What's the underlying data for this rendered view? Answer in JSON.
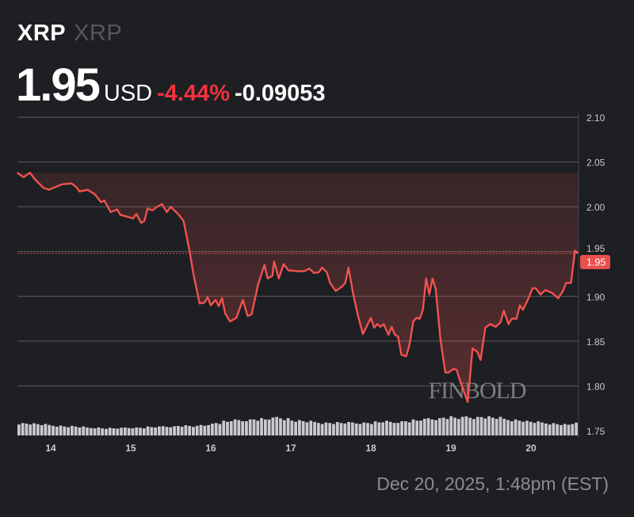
{
  "header": {
    "symbol": "XRP",
    "name": "XRP",
    "price": "1.95",
    "currency": "USD",
    "change_pct": "-4.44%",
    "change_abs": "-0.09053"
  },
  "timestamp": "Dec 20, 2025, 1:48pm (EST)",
  "watermark": "FINBOLD",
  "colors": {
    "background": "#1d1f23",
    "line": "#f0524f",
    "negative": "#f4313e",
    "grid": "#5a5c60",
    "volume": "#d9d9de"
  },
  "chart_data": {
    "type": "line",
    "title": "",
    "xlabel": "",
    "ylabel": "",
    "x_ticks": [
      "14",
      "15",
      "16",
      "17",
      "18",
      "19",
      "20"
    ],
    "y_ticks": [
      "1.75",
      "1.80",
      "1.85",
      "1.90",
      "1.95",
      "2.00",
      "2.05",
      "2.10"
    ],
    "ylim": [
      1.75,
      2.1
    ],
    "xlim": [
      13.58,
      20.6
    ],
    "grid": true,
    "y_axis_position": "right",
    "current_price_label": "1.95",
    "current_price": 1.948,
    "points": [
      [
        13.58,
        2.038
      ],
      [
        13.66,
        2.033
      ],
      [
        13.74,
        2.038
      ],
      [
        13.81,
        2.03
      ],
      [
        13.91,
        2.021
      ],
      [
        13.98,
        2.019
      ],
      [
        14.06,
        2.022
      ],
      [
        14.14,
        2.025
      ],
      [
        14.26,
        2.026
      ],
      [
        14.32,
        2.022
      ],
      [
        14.36,
        2.017
      ],
      [
        14.46,
        2.019
      ],
      [
        14.55,
        2.014
      ],
      [
        14.63,
        2.005
      ],
      [
        14.67,
        2.007
      ],
      [
        14.75,
        1.994
      ],
      [
        14.83,
        1.997
      ],
      [
        14.87,
        1.991
      ],
      [
        14.95,
        1.989
      ],
      [
        15.03,
        1.987
      ],
      [
        15.07,
        1.992
      ],
      [
        15.13,
        1.982
      ],
      [
        15.17,
        1.984
      ],
      [
        15.21,
        1.998
      ],
      [
        15.27,
        1.996
      ],
      [
        15.33,
        2.0
      ],
      [
        15.39,
        2.003
      ],
      [
        15.45,
        1.994
      ],
      [
        15.5,
        2.0
      ],
      [
        15.6,
        1.991
      ],
      [
        15.66,
        1.984
      ],
      [
        15.74,
        1.948
      ],
      [
        15.78,
        1.926
      ],
      [
        15.86,
        1.892
      ],
      [
        15.92,
        1.893
      ],
      [
        15.96,
        1.899
      ],
      [
        16.0,
        1.89
      ],
      [
        16.06,
        1.896
      ],
      [
        16.1,
        1.889
      ],
      [
        16.14,
        1.898
      ],
      [
        16.18,
        1.881
      ],
      [
        16.24,
        1.872
      ],
      [
        16.32,
        1.876
      ],
      [
        16.4,
        1.896
      ],
      [
        16.46,
        1.878
      ],
      [
        16.51,
        1.88
      ],
      [
        16.59,
        1.913
      ],
      [
        16.67,
        1.935
      ],
      [
        16.71,
        1.92
      ],
      [
        16.77,
        1.923
      ],
      [
        16.79,
        1.939
      ],
      [
        16.85,
        1.92
      ],
      [
        16.91,
        1.936
      ],
      [
        16.97,
        1.929
      ],
      [
        17.09,
        1.928
      ],
      [
        17.17,
        1.928
      ],
      [
        17.23,
        1.931
      ],
      [
        17.29,
        1.926
      ],
      [
        17.35,
        1.927
      ],
      [
        17.39,
        1.932
      ],
      [
        17.45,
        1.927
      ],
      [
        17.49,
        1.915
      ],
      [
        17.56,
        1.906
      ],
      [
        17.64,
        1.911
      ],
      [
        17.68,
        1.915
      ],
      [
        17.72,
        1.932
      ],
      [
        17.78,
        1.902
      ],
      [
        17.84,
        1.878
      ],
      [
        17.9,
        1.858
      ],
      [
        18.0,
        1.876
      ],
      [
        18.04,
        1.865
      ],
      [
        18.08,
        1.869
      ],
      [
        18.12,
        1.866
      ],
      [
        18.16,
        1.869
      ],
      [
        18.22,
        1.857
      ],
      [
        18.26,
        1.866
      ],
      [
        18.3,
        1.857
      ],
      [
        18.34,
        1.855
      ],
      [
        18.38,
        1.835
      ],
      [
        18.44,
        1.833
      ],
      [
        18.48,
        1.845
      ],
      [
        18.53,
        1.872
      ],
      [
        18.57,
        1.876
      ],
      [
        18.61,
        1.875
      ],
      [
        18.65,
        1.885
      ],
      [
        18.69,
        1.92
      ],
      [
        18.73,
        1.902
      ],
      [
        18.77,
        1.92
      ],
      [
        18.81,
        1.908
      ],
      [
        18.87,
        1.851
      ],
      [
        18.93,
        1.815
      ],
      [
        18.97,
        1.815
      ],
      [
        19.03,
        1.819
      ],
      [
        19.07,
        1.818
      ],
      [
        19.11,
        1.807
      ],
      [
        19.21,
        1.782
      ],
      [
        19.27,
        1.842
      ],
      [
        19.33,
        1.838
      ],
      [
        19.37,
        1.829
      ],
      [
        19.43,
        1.865
      ],
      [
        19.49,
        1.869
      ],
      [
        19.56,
        1.866
      ],
      [
        19.62,
        1.871
      ],
      [
        19.66,
        1.884
      ],
      [
        19.72,
        1.869
      ],
      [
        19.76,
        1.875
      ],
      [
        19.82,
        1.875
      ],
      [
        19.86,
        1.89
      ],
      [
        19.9,
        1.885
      ],
      [
        19.96,
        1.896
      ],
      [
        20.02,
        1.909
      ],
      [
        20.06,
        1.909
      ],
      [
        20.12,
        1.902
      ],
      [
        20.18,
        1.907
      ],
      [
        20.26,
        1.904
      ],
      [
        20.3,
        1.901
      ],
      [
        20.34,
        1.898
      ],
      [
        20.4,
        1.906
      ],
      [
        20.44,
        1.915
      ],
      [
        20.5,
        1.915
      ],
      [
        20.55,
        1.951
      ],
      [
        20.59,
        1.948
      ]
    ],
    "volume_relative": [
      20,
      20,
      19,
      18,
      17,
      16,
      15,
      15,
      14,
      13,
      13,
      12,
      12,
      12,
      13,
      13,
      13,
      14,
      14,
      15,
      15,
      16,
      16,
      15,
      17,
      19,
      21,
      23,
      25,
      25,
      26,
      27,
      27,
      28,
      30,
      28,
      25,
      24,
      23,
      22,
      21,
      21,
      21,
      21,
      21,
      21,
      21,
      22,
      23,
      22,
      23,
      24,
      25,
      26,
      28,
      28,
      30,
      30,
      29,
      31,
      30,
      31,
      30,
      29,
      27,
      26,
      25,
      23,
      22,
      21,
      20,
      19,
      18,
      20
    ]
  }
}
